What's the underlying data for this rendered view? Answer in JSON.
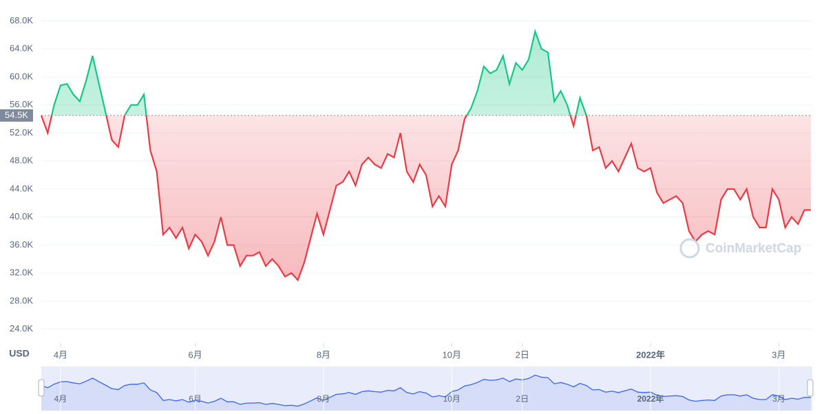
{
  "chart_data": {
    "type": "line",
    "y_label": "USD",
    "watermark": "CoinMarketCap",
    "ylim": [
      22000,
      70000
    ],
    "yticks": [
      {
        "value": 24000,
        "label": "24.0K"
      },
      {
        "value": 28000,
        "label": "28.0K"
      },
      {
        "value": 32000,
        "label": "32.0K"
      },
      {
        "value": 36000,
        "label": "36.0K"
      },
      {
        "value": 40000,
        "label": "40.0K"
      },
      {
        "value": 44000,
        "label": "44.0K"
      },
      {
        "value": 48000,
        "label": "48.0K"
      },
      {
        "value": 52000,
        "label": "52.0K"
      },
      {
        "value": 56000,
        "label": "56.0K"
      },
      {
        "value": 60000,
        "label": "60.0K"
      },
      {
        "value": 64000,
        "label": "64.0K"
      },
      {
        "value": 68000,
        "label": "68.0K"
      }
    ],
    "baseline": {
      "value": 54500,
      "label": "54.5K"
    },
    "up_color": "#16c784",
    "down_color": "#ea3943",
    "nav_color": "#3861fb",
    "grid": true,
    "categories": [
      null,
      null,
      null,
      "4月",
      null,
      null,
      null,
      null,
      null,
      null,
      null,
      null,
      null,
      null,
      null,
      null,
      null,
      null,
      null,
      null,
      null,
      null,
      null,
      null,
      "6月",
      null,
      null,
      null,
      null,
      null,
      null,
      null,
      null,
      null,
      null,
      null,
      null,
      null,
      null,
      null,
      null,
      null,
      null,
      null,
      "8月",
      null,
      null,
      null,
      null,
      null,
      null,
      null,
      null,
      null,
      null,
      null,
      null,
      null,
      null,
      null,
      null,
      null,
      null,
      null,
      "10月",
      null,
      null,
      null,
      null,
      null,
      null,
      null,
      null,
      null,
      null,
      "2日",
      null,
      null,
      null,
      null,
      null,
      null,
      null,
      null,
      null,
      null,
      null,
      null,
      null,
      null,
      null,
      null,
      null,
      null,
      null,
      "2022年",
      null,
      null,
      null,
      null,
      null,
      null,
      null,
      null,
      null,
      null,
      null,
      null,
      null,
      null,
      null,
      null,
      null,
      null,
      null,
      "3月",
      null,
      null,
      null,
      null,
      null
    ],
    "values": [
      54500,
      52000,
      56000,
      58800,
      59000,
      57500,
      56500,
      59500,
      63000,
      59000,
      55000,
      51000,
      50000,
      54500,
      56000,
      56000,
      57500,
      49500,
      46500,
      37500,
      38500,
      37000,
      38500,
      35500,
      37500,
      36500,
      34500,
      36500,
      40000,
      36000,
      36000,
      33000,
      34500,
      34500,
      35000,
      33000,
      34000,
      33000,
      31500,
      32000,
      31000,
      33500,
      37000,
      40500,
      37500,
      41000,
      44500,
      45000,
      46500,
      44500,
      47500,
      48500,
      47500,
      47000,
      49000,
      48500,
      52000,
      46500,
      45000,
      47500,
      46000,
      41500,
      43000,
      41500,
      47500,
      49500,
      54000,
      55500,
      58000,
      61500,
      60500,
      61000,
      63000,
      59000,
      62000,
      61000,
      62500,
      66500,
      64000,
      63500,
      56500,
      58000,
      56000,
      53000,
      57000,
      54500,
      49500,
      50000,
      47000,
      48000,
      46500,
      48500,
      50500,
      47000,
      46500,
      47000,
      43500,
      42000,
      42500,
      43000,
      42000,
      38000,
      36500,
      37500,
      38000,
      37500,
      42500,
      44000,
      44000,
      42500,
      44000,
      40000,
      38500,
      38500,
      44000,
      42500,
      38500,
      40000,
      39000,
      41000,
      41000
    ]
  }
}
